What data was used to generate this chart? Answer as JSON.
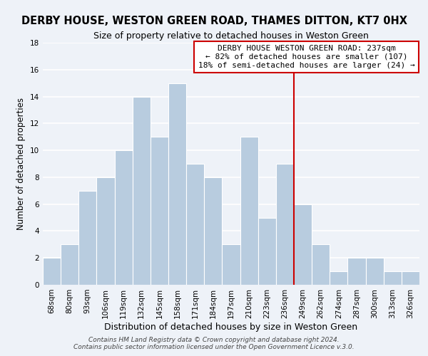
{
  "title": "DERBY HOUSE, WESTON GREEN ROAD, THAMES DITTON, KT7 0HX",
  "subtitle": "Size of property relative to detached houses in Weston Green",
  "xlabel": "Distribution of detached houses by size in Weston Green",
  "ylabel": "Number of detached properties",
  "bar_labels": [
    "68sqm",
    "80sqm",
    "93sqm",
    "106sqm",
    "119sqm",
    "132sqm",
    "145sqm",
    "158sqm",
    "171sqm",
    "184sqm",
    "197sqm",
    "210sqm",
    "223sqm",
    "236sqm",
    "249sqm",
    "262sqm",
    "274sqm",
    "287sqm",
    "300sqm",
    "313sqm",
    "326sqm"
  ],
  "bar_heights": [
    2,
    3,
    7,
    8,
    10,
    14,
    11,
    15,
    9,
    8,
    3,
    11,
    5,
    9,
    6,
    3,
    1,
    2,
    2,
    1,
    1
  ],
  "bar_color": "#b8ccdf",
  "vline_x": 13.5,
  "vline_color": "#cc0000",
  "ylim": [
    0,
    18
  ],
  "yticks": [
    0,
    2,
    4,
    6,
    8,
    10,
    12,
    14,
    16,
    18
  ],
  "annotation_text": "DERBY HOUSE WESTON GREEN ROAD: 237sqm\n← 82% of detached houses are smaller (107)\n18% of semi-detached houses are larger (24) →",
  "annotation_box_edge": "#cc0000",
  "footer1": "Contains HM Land Registry data © Crown copyright and database right 2024.",
  "footer2": "Contains public sector information licensed under the Open Government Licence v.3.0.",
  "background_color": "#eef2f8",
  "grid_color": "#ffffff",
  "title_fontsize": 10.5,
  "subtitle_fontsize": 9,
  "xlabel_fontsize": 9,
  "ylabel_fontsize": 8.5,
  "annotation_fontsize": 8,
  "footer_fontsize": 6.5,
  "tick_fontsize": 7.5
}
